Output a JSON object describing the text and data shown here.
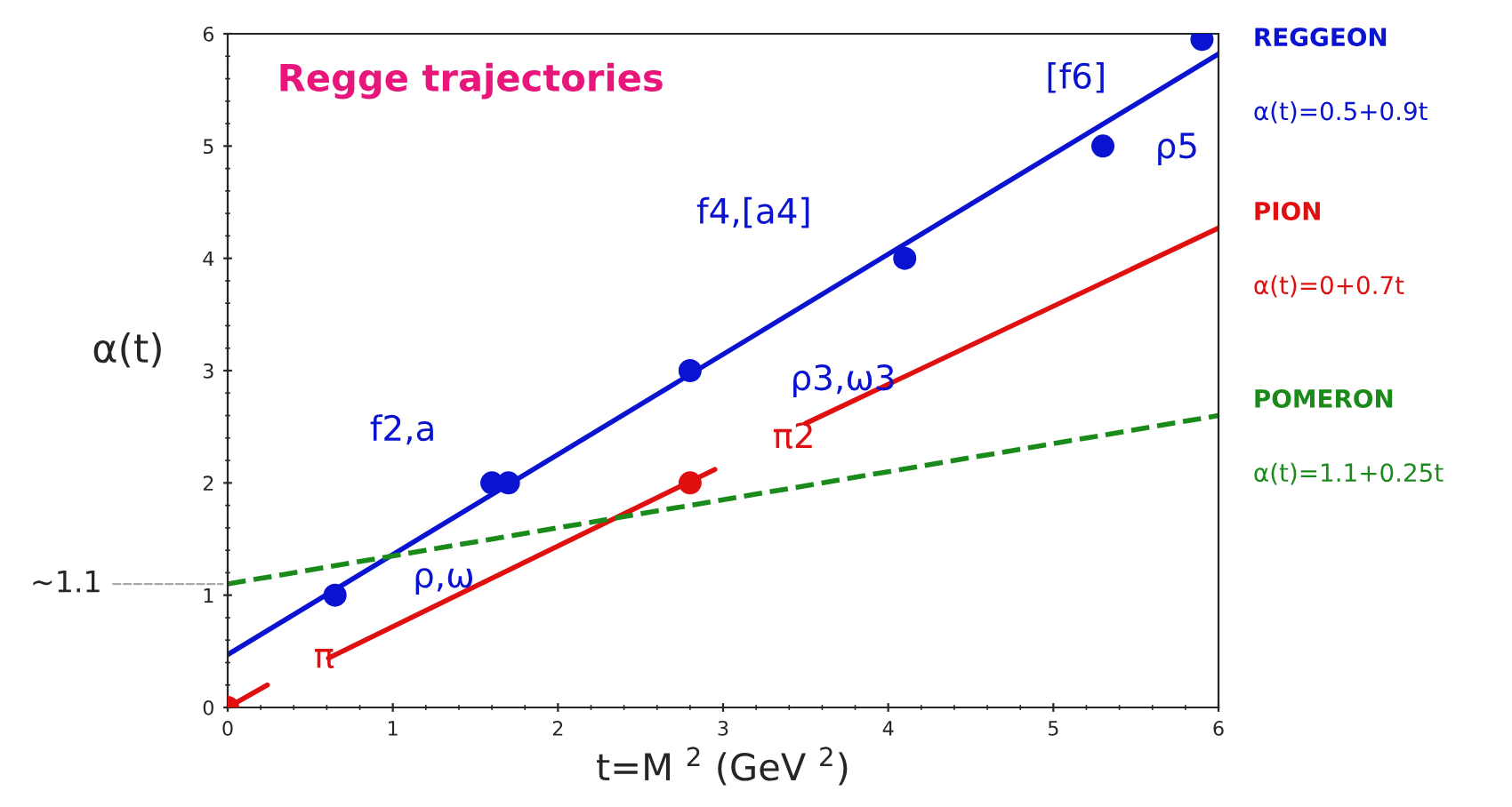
{
  "chart_data": {
    "type": "line",
    "title": "Regge trajectories",
    "xlabel": "t=M $^{2}$ (GeV $^{2}$)",
    "ylabel": "α(t)",
    "xlim": [
      0,
      6
    ],
    "ylim": [
      0,
      6
    ],
    "xticks": [
      0,
      1,
      2,
      3,
      4,
      5,
      6
    ],
    "yticks": [
      0,
      1,
      2,
      3,
      4,
      5,
      6
    ],
    "grid": false,
    "line_style": "solid",
    "series": [
      {
        "name": "REGGEON",
        "color": "#0a14d0",
        "x": [
          0,
          6
        ],
        "values": [
          0.47,
          5.82
        ]
      },
      {
        "name": "PION",
        "color": "#e01010",
        "x": [
          0,
          0.24,
          0.4,
          0.61,
          2.95,
          3.2,
          3.5,
          6
        ],
        "values": [
          0,
          0.2,
          null,
          0.44,
          2.12,
          null,
          2.53,
          4.27
        ]
      },
      {
        "name": "POMERON",
        "color": "#1a8a1a",
        "x": [
          0,
          6
        ],
        "values": [
          1.1,
          2.6
        ],
        "line_style": "dashed"
      },
      {
        "type": "scatter",
        "color": "#0a14d0",
        "marker": "circle",
        "x": [
          0.65,
          1.6,
          1.7,
          2.8,
          4.1,
          5.3,
          5.9
        ],
        "values": [
          1,
          2,
          2,
          3,
          4,
          5,
          5.95
        ]
      },
      {
        "type": "scatter",
        "color": "#e01010",
        "marker": "circle",
        "x": [
          0,
          2.8
        ],
        "values": [
          0,
          2
        ]
      }
    ],
    "annotations": [
      "α(t)=0.5+0.9t",
      "α(t)=0+0.7t",
      "α(t)=1.1+0.25t",
      {
        "text": "[f6]",
        "x": 5.9,
        "y": 5.95
      },
      {
        "text": "ρ5",
        "x": 5.3,
        "y": 5
      },
      {
        "text": "f4,[a4]",
        "x": 4.1,
        "y": 4
      },
      {
        "text": "ρ3,ω3",
        "x": 2.8,
        "y": 3
      },
      {
        "text": "f2,a",
        "x": 1.6,
        "y": 2
      },
      {
        "text": "ρ,ω",
        "x": 0.65,
        "y": 1
      },
      {
        "text": "π",
        "x": 0,
        "y": 0
      },
      {
        "text": "π2",
        "x": 2.8,
        "y": 2
      },
      {
        "text": "~1.1",
        "x": 0,
        "y": 1.1
      }
    ]
  }
}
